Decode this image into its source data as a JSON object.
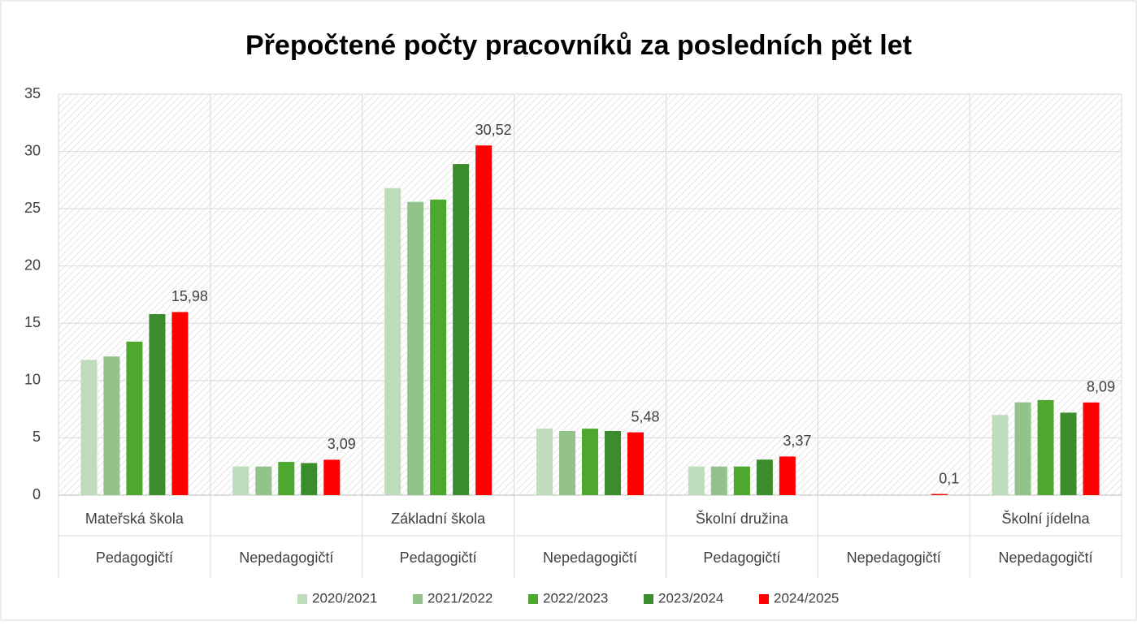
{
  "chart_data": {
    "type": "bar",
    "title": "Přepočtené počty pracovníků za posledních pět let",
    "groups": [
      "Mateřská škola",
      null,
      "Základní škola",
      null,
      "Školní družina",
      null,
      "Školní jídelna"
    ],
    "categories": [
      "Pedagogičtí",
      "Nepedagogičtí",
      "Pedagogičtí",
      "Nepedagogičtí",
      "Pedagogičtí",
      "Nepedagogičtí",
      "Nepedagogičtí"
    ],
    "series": [
      {
        "name": "2020/2021",
        "color": "#bfdcbc",
        "values": [
          11.8,
          2.5,
          26.8,
          5.8,
          2.5,
          null,
          7.0
        ]
      },
      {
        "name": "2021/2022",
        "color": "#93c38b",
        "values": [
          12.1,
          2.5,
          25.6,
          5.6,
          2.5,
          null,
          8.1
        ]
      },
      {
        "name": "2022/2023",
        "color": "#4ea72e",
        "values": [
          13.4,
          2.9,
          25.8,
          5.8,
          2.5,
          null,
          8.3
        ]
      },
      {
        "name": "2023/2024",
        "color": "#3a8c2c",
        "values": [
          15.8,
          2.8,
          28.9,
          5.6,
          3.1,
          null,
          7.2
        ]
      },
      {
        "name": "2024/2025",
        "color": "#ff0000",
        "values": [
          15.98,
          3.09,
          30.52,
          5.48,
          3.37,
          0.1,
          8.09
        ],
        "value_labels": [
          "15,98",
          "3,09",
          "30,52",
          "5,48",
          "3,37",
          "0,1",
          "8,09"
        ]
      }
    ],
    "ylim": [
      0,
      35
    ],
    "yticks": [
      0,
      5,
      10,
      15,
      20,
      25,
      30,
      35
    ],
    "grid": true,
    "legend": "bottom"
  }
}
